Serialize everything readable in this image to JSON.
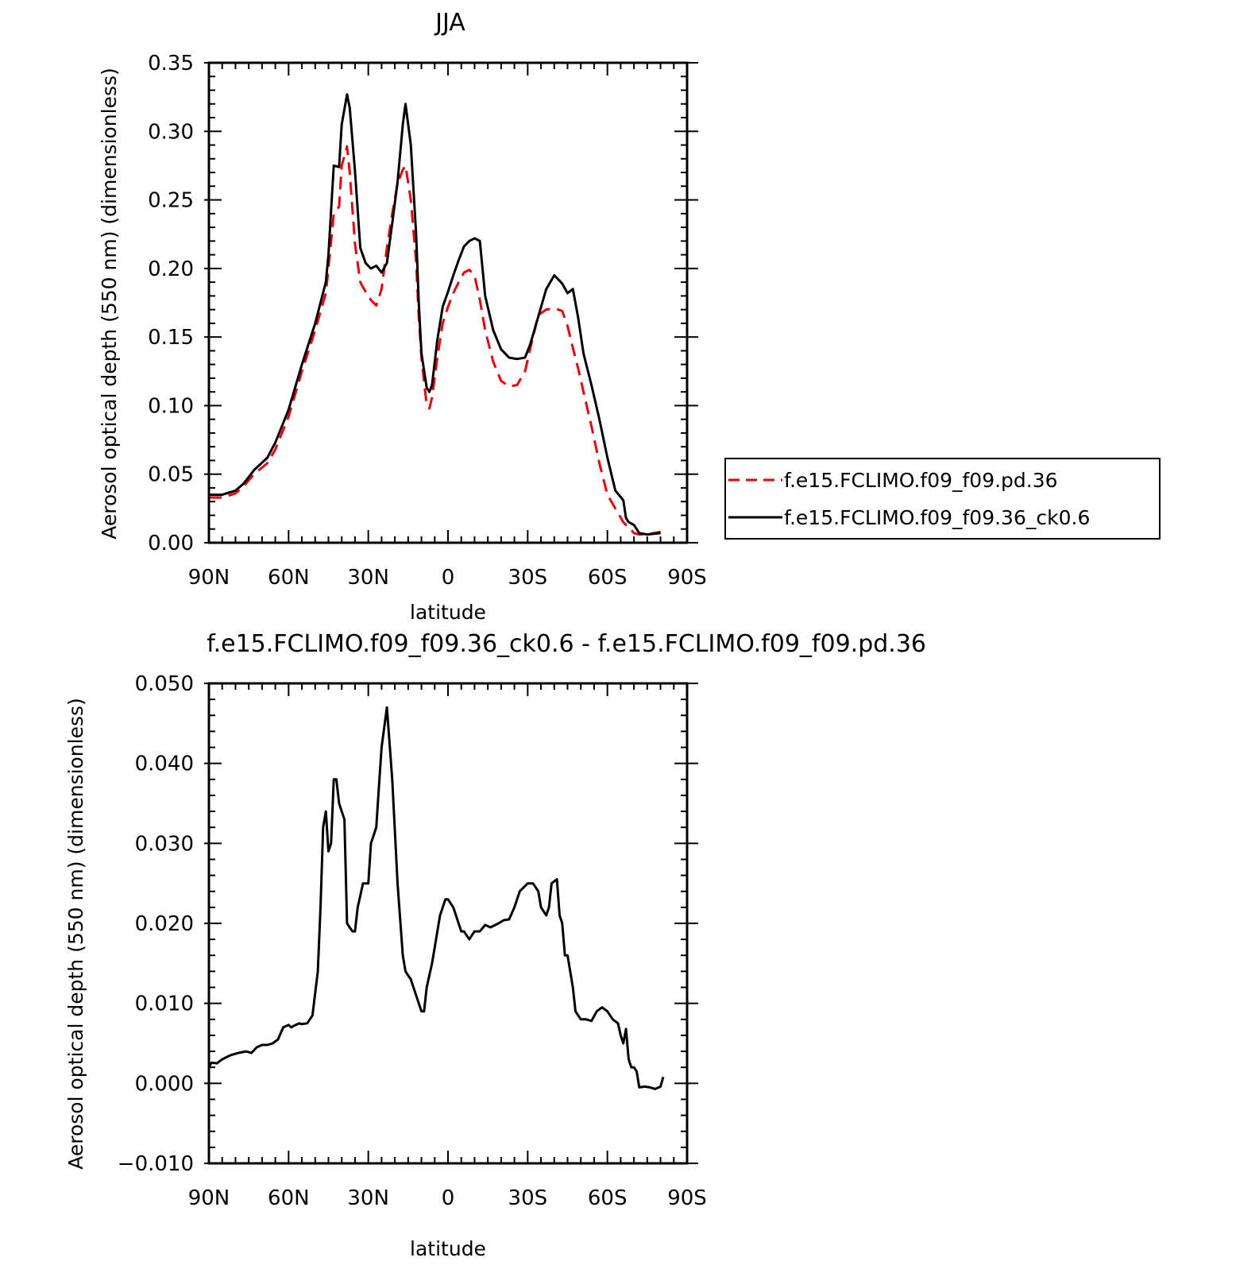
{
  "chart_data": [
    {
      "type": "line",
      "title": "JJA",
      "xlabel": "latitude",
      "ylabel": "Aerosol optical depth (550 nm) (dimensionless)",
      "x_ticks": [
        90,
        60,
        30,
        0,
        -30,
        -60,
        -90
      ],
      "x_tick_labels": [
        "90N",
        "60N",
        "30N",
        "0",
        "30S",
        "60S",
        "90S"
      ],
      "xlim": [
        90,
        -90
      ],
      "ylim": [
        0,
        0.35
      ],
      "y_ticks": [
        0,
        0.05,
        0.1,
        0.15,
        0.2,
        0.25,
        0.3,
        0.35
      ],
      "y_tick_labels": [
        "0.00",
        "0.05",
        "0.10",
        "0.15",
        "0.20",
        "0.25",
        "0.30",
        "0.35"
      ],
      "legend_position": "right",
      "series": [
        {
          "name": "f.e15.FCLIMO.f09_f09.pd.36",
          "color": "#e8000b",
          "style": "dashed",
          "x": [
            90,
            85,
            80,
            77,
            73,
            68,
            65,
            60,
            55,
            50,
            46,
            45,
            43,
            41,
            40,
            38,
            37,
            35,
            33,
            31,
            29,
            27,
            25,
            23,
            21,
            19,
            17,
            16,
            14,
            12,
            11,
            10,
            8,
            7,
            6,
            4,
            2,
            0,
            -2,
            -4,
            -6,
            -8,
            -10,
            -12,
            -14,
            -17,
            -20,
            -23,
            -26,
            -29,
            -31,
            -34,
            -37,
            -40,
            -43,
            -45,
            -47,
            -49,
            -51,
            -54,
            -57,
            -60,
            -63,
            -66,
            -67,
            -68,
            -70,
            -72,
            -75,
            -80
          ],
          "y": [
            0.033,
            0.033,
            0.036,
            0.041,
            0.05,
            0.058,
            0.068,
            0.092,
            0.125,
            0.155,
            0.182,
            0.2,
            0.24,
            0.245,
            0.275,
            0.289,
            0.27,
            0.218,
            0.19,
            0.183,
            0.177,
            0.173,
            0.185,
            0.215,
            0.24,
            0.262,
            0.272,
            0.275,
            0.25,
            0.205,
            0.165,
            0.135,
            0.1,
            0.098,
            0.106,
            0.135,
            0.16,
            0.172,
            0.182,
            0.19,
            0.197,
            0.199,
            0.195,
            0.177,
            0.155,
            0.132,
            0.118,
            0.114,
            0.115,
            0.125,
            0.142,
            0.166,
            0.17,
            0.171,
            0.169,
            0.158,
            0.142,
            0.127,
            0.11,
            0.085,
            0.058,
            0.035,
            0.025,
            0.015,
            0.013,
            0.012,
            0.007,
            0.006,
            0.006,
            0.008
          ]
        },
        {
          "name": "f.e15.FCLIMO.f09_f09.36_ck0.6",
          "color": "#000000",
          "style": "solid",
          "x": [
            90,
            85,
            80,
            77,
            73,
            68,
            65,
            60,
            55,
            50,
            46,
            45,
            43,
            41,
            40,
            38,
            37,
            35,
            33,
            31,
            29,
            27,
            25,
            23,
            21,
            19,
            17,
            16,
            14,
            12,
            11,
            10,
            8,
            7,
            6,
            4,
            2,
            0,
            -2,
            -4,
            -6,
            -8,
            -10,
            -12,
            -14,
            -17,
            -20,
            -23,
            -26,
            -29,
            -31,
            -34,
            -37,
            -40,
            -43,
            -45,
            -47,
            -49,
            -51,
            -54,
            -57,
            -60,
            -63,
            -66,
            -67,
            -68,
            -70,
            -72,
            -75,
            -80
          ],
          "y": [
            0.035,
            0.035,
            0.038,
            0.043,
            0.053,
            0.062,
            0.073,
            0.097,
            0.13,
            0.16,
            0.19,
            0.21,
            0.275,
            0.274,
            0.305,
            0.327,
            0.317,
            0.271,
            0.215,
            0.204,
            0.2,
            0.202,
            0.197,
            0.204,
            0.233,
            0.263,
            0.305,
            0.32,
            0.29,
            0.225,
            0.175,
            0.138,
            0.113,
            0.11,
            0.115,
            0.148,
            0.172,
            0.183,
            0.195,
            0.206,
            0.216,
            0.22,
            0.222,
            0.22,
            0.18,
            0.155,
            0.141,
            0.135,
            0.134,
            0.135,
            0.145,
            0.165,
            0.185,
            0.195,
            0.189,
            0.182,
            0.185,
            0.164,
            0.138,
            0.115,
            0.09,
            0.062,
            0.038,
            0.031,
            0.018,
            0.015,
            0.013,
            0.007,
            0.006,
            0.007
          ]
        }
      ]
    },
    {
      "type": "line",
      "title": "f.e15.FCLIMO.f09_f09.36_ck0.6 - f.e15.FCLIMO.f09_f09.pd.36",
      "xlabel": "latitude",
      "ylabel": "Aerosol optical depth (550 nm) (dimensionless)",
      "x_ticks": [
        90,
        60,
        30,
        0,
        -30,
        -60,
        -90
      ],
      "x_tick_labels": [
        "90N",
        "60N",
        "30N",
        "0",
        "30S",
        "60S",
        "90S"
      ],
      "xlim": [
        90,
        -90
      ],
      "ylim": [
        -0.01,
        0.05
      ],
      "y_ticks": [
        -0.01,
        0,
        0.01,
        0.02,
        0.03,
        0.04,
        0.05
      ],
      "y_tick_labels": [
        "−0.010",
        "0.000",
        "0.010",
        "0.020",
        "0.030",
        "0.040",
        "0.050"
      ],
      "series": [
        {
          "color": "#000000",
          "style": "solid",
          "x": [
            90,
            89,
            87,
            85,
            82,
            79,
            76,
            74,
            72,
            70,
            68,
            66,
            64,
            62,
            60,
            59,
            58,
            56,
            55,
            53,
            52,
            51,
            49,
            48,
            47,
            46,
            45,
            44,
            43,
            42,
            41,
            40,
            39,
            38,
            36,
            35,
            34,
            32,
            31,
            30,
            29,
            28,
            27,
            26,
            25,
            23,
            21,
            19,
            17,
            16,
            14,
            12,
            10,
            9,
            8,
            6,
            5,
            4,
            3,
            1,
            0,
            -2,
            -3,
            -5,
            -6,
            -8,
            -10,
            -12,
            -14,
            -16,
            -19,
            -21,
            -23,
            -25,
            -27,
            -30,
            -32,
            -34,
            -35,
            -37,
            -38,
            -39,
            -41,
            -42,
            -43,
            -44,
            -45,
            -47,
            -48,
            -50,
            -52,
            -54,
            -56,
            -58,
            -60,
            -62,
            -64,
            -65,
            -66,
            -67,
            -68,
            -69,
            -70,
            -71,
            -72,
            -74,
            -76,
            -78,
            -80,
            -81
          ],
          "y": [
            0.002,
            0.0026,
            0.0025,
            0.003,
            0.0035,
            0.0038,
            0.004,
            0.0038,
            0.0045,
            0.0048,
            0.0048,
            0.005,
            0.0055,
            0.007,
            0.0073,
            0.007,
            0.0072,
            0.0075,
            0.0074,
            0.0075,
            0.008,
            0.0085,
            0.014,
            0.022,
            0.032,
            0.034,
            0.029,
            0.03,
            0.038,
            0.038,
            0.035,
            0.034,
            0.033,
            0.02,
            0.019,
            0.019,
            0.022,
            0.025,
            0.025,
            0.025,
            0.03,
            0.031,
            0.032,
            0.037,
            0.042,
            0.047,
            0.038,
            0.025,
            0.016,
            0.014,
            0.013,
            0.011,
            0.009,
            0.009,
            0.012,
            0.015,
            0.017,
            0.019,
            0.021,
            0.023,
            0.023,
            0.022,
            0.021,
            0.019,
            0.019,
            0.018,
            0.019,
            0.019,
            0.0198,
            0.0195,
            0.02,
            0.0204,
            0.0205,
            0.022,
            0.024,
            0.025,
            0.025,
            0.024,
            0.022,
            0.021,
            0.022,
            0.025,
            0.0255,
            0.021,
            0.02,
            0.016,
            0.016,
            0.012,
            0.009,
            0.008,
            0.008,
            0.0078,
            0.009,
            0.0095,
            0.009,
            0.008,
            0.0075,
            0.006,
            0.005,
            0.0068,
            0.003,
            0.002,
            0.002,
            0.0015,
            -0.0005,
            -0.0004,
            -0.0005,
            -0.0007,
            -0.0004,
            0.0008
          ]
        }
      ]
    }
  ]
}
